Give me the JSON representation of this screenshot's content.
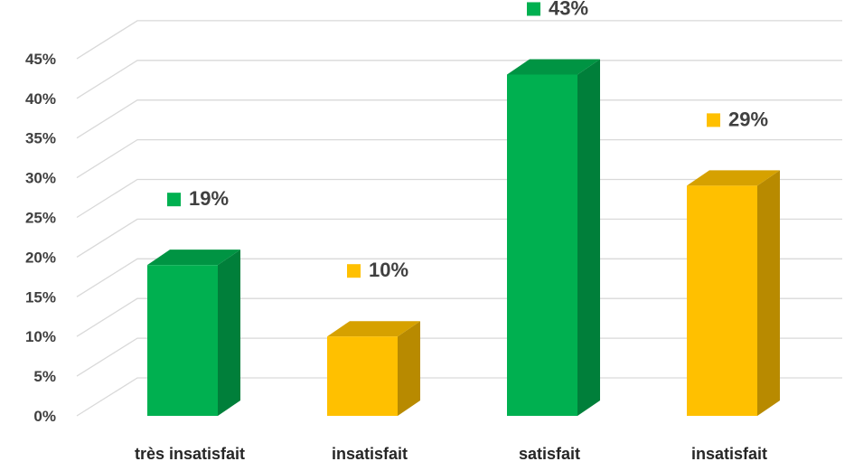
{
  "chart_data": {
    "type": "bar",
    "title": "",
    "xlabel": "",
    "ylabel": "",
    "categories": [
      "très insatisfait",
      "insatisfait",
      "satisfait",
      "insatisfait"
    ],
    "values": [
      19,
      10,
      43,
      29
    ],
    "data_labels": [
      "19%",
      "10%",
      "43%",
      "29%"
    ],
    "bar_colors": [
      "#00b050",
      "#ffc000",
      "#00b050",
      "#ffc000"
    ],
    "yticks": [
      "0%",
      "5%",
      "10%",
      "15%",
      "20%",
      "25%",
      "30%",
      "35%",
      "40%",
      "45%"
    ],
    "ylim": [
      0,
      45
    ],
    "grid": true,
    "style": "3d-column"
  }
}
